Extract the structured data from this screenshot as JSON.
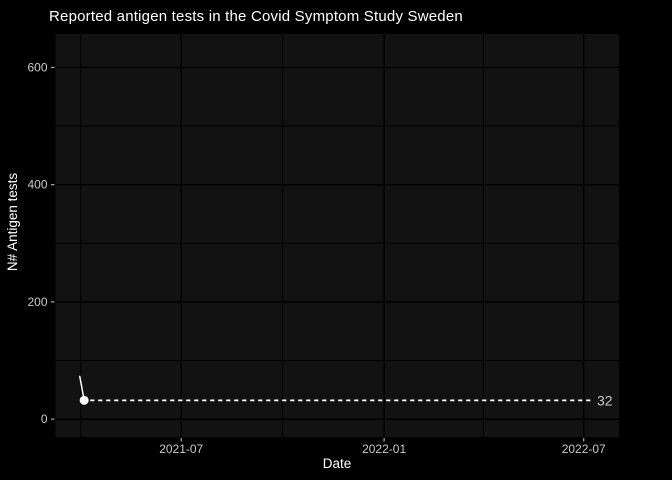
{
  "chart_data": {
    "type": "line",
    "title": "Reported antigen tests in the Covid Symptom Study Sweden",
    "xlabel": "Date",
    "ylabel": "N# Antigen tests",
    "x_domain": [
      "2021-03-09",
      "2022-08-02"
    ],
    "x_major_ticks": [
      {
        "date": "2021-07-01",
        "label": "2021-07"
      },
      {
        "date": "2022-01-01",
        "label": "2022-01"
      },
      {
        "date": "2022-07-01",
        "label": "2022-07"
      }
    ],
    "x_minor_ticks": [
      "2021-04-01",
      "2021-10-01",
      "2022-04-01"
    ],
    "ylim": [
      -30.5,
      657
    ],
    "y_major_ticks": [
      {
        "value": 0,
        "label": "0"
      },
      {
        "value": 200,
        "label": "200"
      },
      {
        "value": 400,
        "label": "400"
      },
      {
        "value": 600,
        "label": "600"
      }
    ],
    "y_minor_ticks": [
      100,
      300,
      500
    ],
    "grid": true,
    "legend": "none",
    "series": [
      {
        "name": "reported-antigen-tests",
        "points": [
          [
            "2021-03-31",
            73
          ],
          [
            "2021-04-04",
            32
          ]
        ]
      }
    ],
    "last_value_annotation": {
      "value": 32,
      "label": "32"
    },
    "colors": {
      "background": "#000000",
      "panel": "#121212",
      "grid_major": "#000000",
      "grid_minor": "#000000",
      "axis_text": "#c9c9c9",
      "axis_ticks": "#aaaaaa",
      "title": "#ffffff",
      "axis_title": "#ffffff",
      "series": "#ffffff",
      "annotation_line": "#ffffff",
      "annotation_text": "#c8c8c8"
    }
  }
}
